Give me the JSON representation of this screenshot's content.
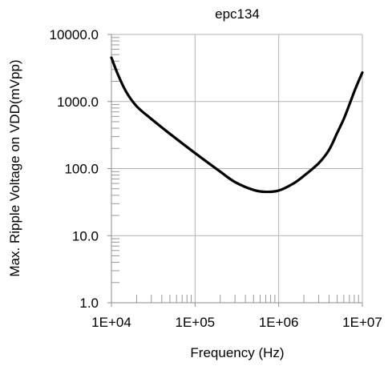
{
  "chart_data": {
    "type": "line",
    "title": "epc134",
    "xlabel": "Frequency (Hz)",
    "ylabel": "Max. Ripple Voltage on VDD(mVpp)",
    "x_scale": "log",
    "y_scale": "log",
    "xlim": [
      10000,
      10000000
    ],
    "ylim": [
      1,
      10000
    ],
    "x_ticks": [
      {
        "value": 10000,
        "label": "1E+04"
      },
      {
        "value": 100000,
        "label": "1E+05"
      },
      {
        "value": 1000000,
        "label": "1E+06"
      },
      {
        "value": 10000000,
        "label": "1E+07"
      }
    ],
    "y_ticks": [
      {
        "value": 1,
        "label": "1.0"
      },
      {
        "value": 10,
        "label": "10.0"
      },
      {
        "value": 100,
        "label": "100.0"
      },
      {
        "value": 1000,
        "label": "1000.0"
      },
      {
        "value": 10000,
        "label": "10000.0"
      }
    ],
    "grid": true,
    "legend": "none",
    "series": [
      {
        "color": "#000000",
        "x": [
          10000,
          12000,
          15000,
          20000,
          30000,
          50000,
          100000,
          200000,
          300000,
          500000,
          700000,
          1000000,
          1500000,
          2000000,
          3000000,
          4000000,
          5000000,
          6000000,
          7000000,
          8000000,
          9000000,
          10000000
        ],
        "y": [
          4500,
          2500,
          1400,
          850,
          550,
          330,
          170,
          90,
          63,
          48,
          45,
          47,
          60,
          78,
          120,
          190,
          340,
          550,
          900,
          1400,
          2000,
          2700
        ]
      }
    ]
  }
}
